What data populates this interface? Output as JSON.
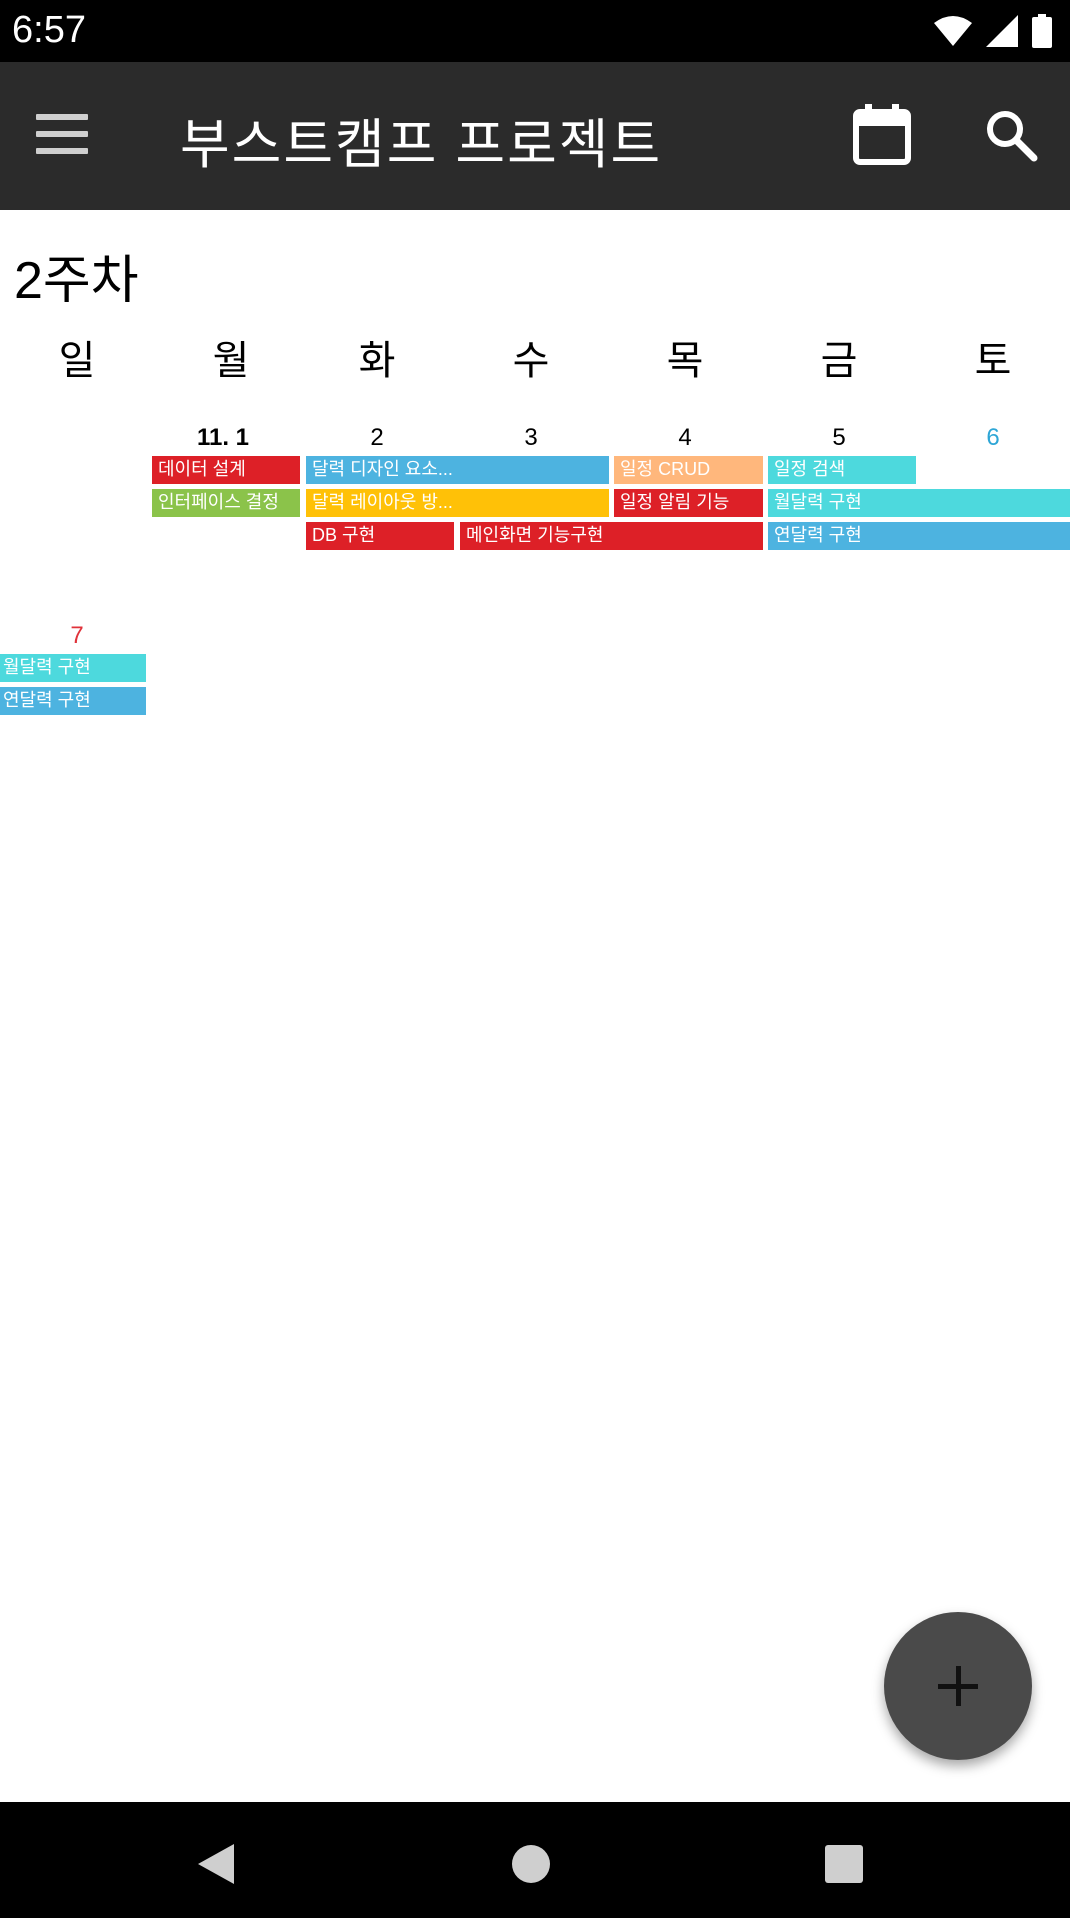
{
  "status_bar": {
    "time": "6:57"
  },
  "app_bar": {
    "title": "부스트캠프 프로젝트"
  },
  "week_title": "2주차",
  "days_of_week": [
    "일",
    "월",
    "화",
    "수",
    "목",
    "금",
    "토"
  ],
  "week_row_1": {
    "dates": [
      "11. 1",
      "2",
      "3",
      "4",
      "5",
      "6"
    ],
    "events": [
      {
        "label": "데이터 설계",
        "color": "#dd2027"
      },
      {
        "label": "인터페이스 결정",
        "color": "#8bc34a"
      },
      {
        "label": "달력 디자인 요소...",
        "color": "#4db3e0"
      },
      {
        "label": "달력 레이아웃 방...",
        "color": "#ffc107"
      },
      {
        "label": "DB 구현",
        "color": "#dd2027"
      },
      {
        "label": "메인화면 기능구현",
        "color": "#dd2027"
      },
      {
        "label": "일정 CRUD",
        "color": "#ffb77c"
      },
      {
        "label": "일정 알림 기능",
        "color": "#dd2027"
      },
      {
        "label": "일정 검색",
        "color": "#4dd9dd"
      },
      {
        "label": "월달력 구현",
        "color": "#4dd9dd"
      },
      {
        "label": "연달력 구현",
        "color": "#4db3e0"
      }
    ]
  },
  "week_row_2": {
    "dates": [
      "7"
    ],
    "events": [
      {
        "label": "월달력 구현",
        "color": "#4dd9dd"
      },
      {
        "label": "연달력 구현",
        "color": "#4db3e0"
      }
    ]
  },
  "colors": {
    "saturday": "#2ea6d6",
    "sunday": "#e0323a",
    "app_bar": "#2b2b2b",
    "fab": "#4a4a4a"
  },
  "icons": {
    "menu": "menu-icon",
    "calendar": "calendar-icon",
    "search": "search-icon",
    "add": "plus-icon",
    "back": "back-triangle-icon",
    "home": "home-circle-icon",
    "recent": "recent-square-icon"
  }
}
